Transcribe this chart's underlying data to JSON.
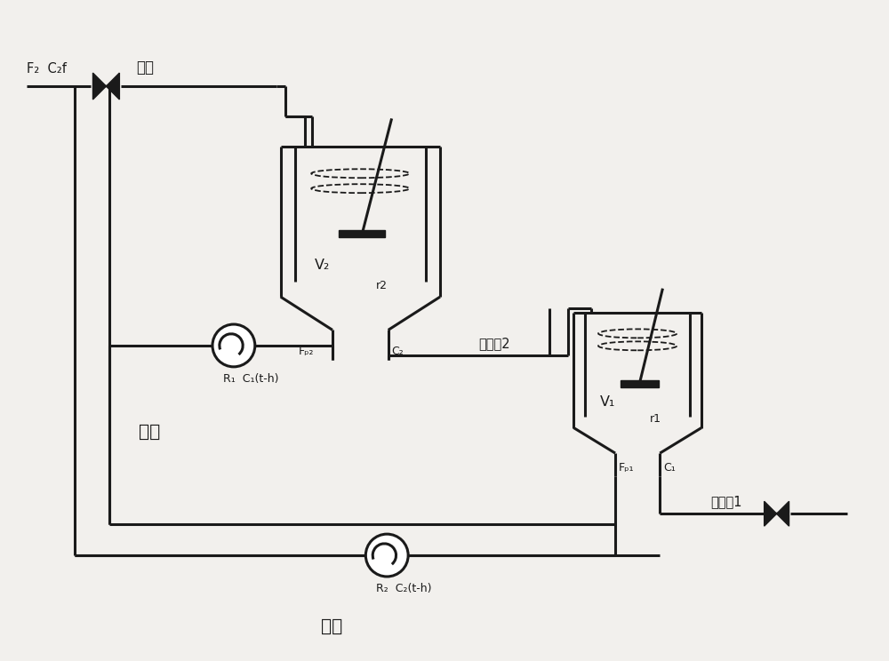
{
  "bg_color": "#f2f0ed",
  "line_color": "#1a1a1a",
  "lw": 2.2,
  "lw_thick": 3.0,
  "fig_w": 10.0,
  "fig_h": 7.44,
  "labels": {
    "F2C2f": "F₂  C₂f",
    "feed": "进料",
    "stream2": "物料流2",
    "stream1": "物料流1",
    "V2": "V₂",
    "r2": "r2",
    "V1": "V₁",
    "r1": "r1",
    "Fp2": "Fₚ₂",
    "C2": "C₂",
    "Fp1": "Fₚ₁",
    "C1": "C₁",
    "R1C1": "R₁  C₁(t-h)",
    "R2C2": "R₂  C₂(t-h)",
    "cycle1": "循环",
    "cycle2": "循环"
  }
}
